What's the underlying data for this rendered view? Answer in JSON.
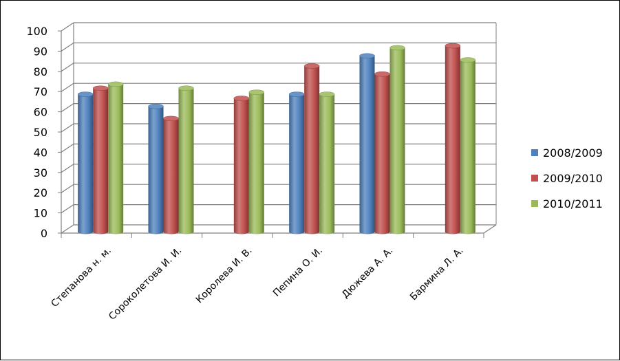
{
  "chart_data": {
    "type": "bar",
    "categories": [
      "Степанова н. м.",
      "Сороколетова И. И.",
      "Королева И. В.",
      "Пепина О. И.",
      "Дюжева А. А.",
      "Бармина Л. А."
    ],
    "series": [
      {
        "name": "2008/2009",
        "color": "#4F81BD",
        "values": [
          68,
          62,
          null,
          68,
          87,
          null
        ]
      },
      {
        "name": "2009/2010",
        "color": "#C0504D",
        "values": [
          71,
          56,
          66,
          82,
          78,
          92
        ]
      },
      {
        "name": "2010/2011",
        "color": "#9BBB59",
        "values": [
          73,
          71,
          69,
          68,
          91,
          85
        ]
      }
    ],
    "ylim": [
      0,
      100
    ],
    "yticks": [
      "0",
      "10",
      "20",
      "30",
      "40",
      "50",
      "60",
      "70",
      "80",
      "90",
      "100"
    ],
    "grid": true,
    "legend_position": "right",
    "style": "3d-cylinder"
  }
}
